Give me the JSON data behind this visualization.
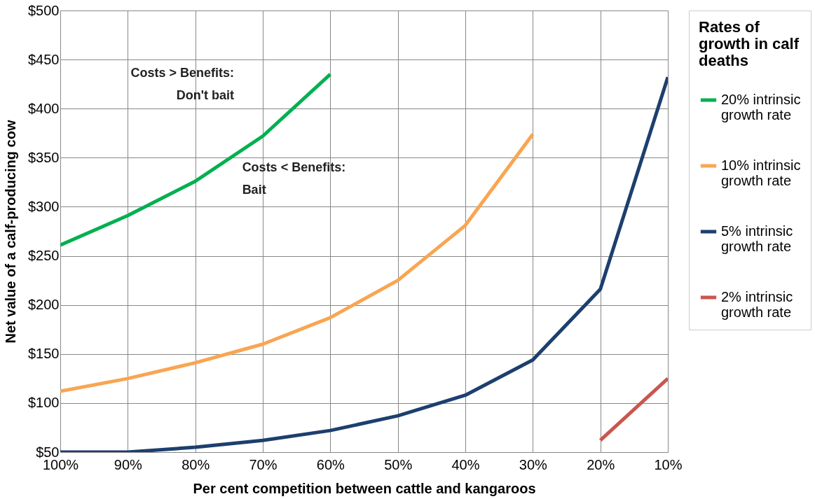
{
  "chart_data": {
    "type": "line",
    "xlabel": "Per cent competition between cattle and kangaroos",
    "ylabel": "Net value of a calf-producing cow",
    "legend_title": "Rates of growth in calf deaths",
    "categories": [
      "100%",
      "90%",
      "80%",
      "70%",
      "60%",
      "50%",
      "40%",
      "30%",
      "20%",
      "10%"
    ],
    "series": [
      {
        "name": "20% intrinsic growth rate",
        "color": "#00b050",
        "values": [
          261,
          291,
          326,
          372,
          435,
          null,
          null,
          null,
          null,
          null
        ]
      },
      {
        "name": "10% intrinsic growth rate",
        "color": "#f9a552",
        "values": [
          112,
          125,
          141,
          160,
          187,
          225,
          281,
          374,
          null,
          null
        ]
      },
      {
        "name": "5% intrinsic growth rate",
        "color": "#1c3f6e",
        "values": [
          50,
          50,
          55,
          62,
          72,
          87,
          108,
          144,
          216,
          432
        ]
      },
      {
        "name": "2% intrinsic growth rate",
        "color": "#c9574f",
        "values": [
          null,
          null,
          null,
          null,
          null,
          null,
          null,
          null,
          62,
          125
        ]
      }
    ],
    "ylim": [
      50,
      500
    ],
    "yticks": [
      {
        "value": 50,
        "label": "$50"
      },
      {
        "value": 100,
        "label": "$100"
      },
      {
        "value": 150,
        "label": "$150"
      },
      {
        "value": 200,
        "label": "$200"
      },
      {
        "value": 250,
        "label": "$250"
      },
      {
        "value": 300,
        "label": "$300"
      },
      {
        "value": 350,
        "label": "$350"
      },
      {
        "value": 400,
        "label": "$400"
      },
      {
        "value": 450,
        "label": "$450"
      },
      {
        "value": 500,
        "label": "$500"
      }
    ],
    "grid": true,
    "legend": "right",
    "marker": "none",
    "line_style": "solid",
    "annotations": [
      "Costs > Benefits:\nDon't bait",
      "Costs < Benefits:\nBait"
    ]
  }
}
